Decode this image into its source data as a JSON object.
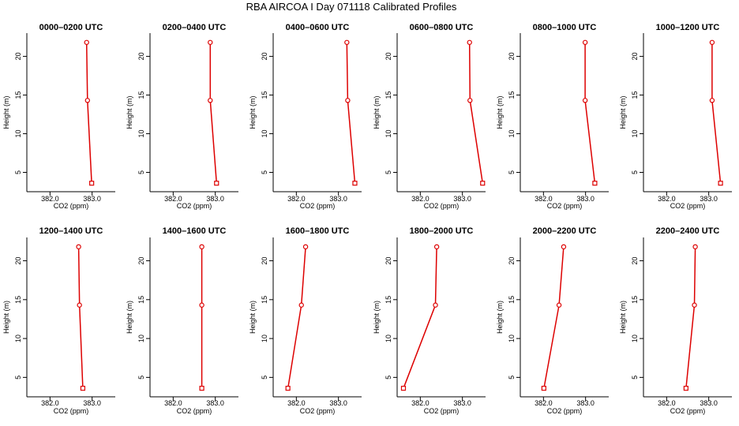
{
  "colors": {
    "line": "#dd0000",
    "axis": "#000000",
    "background": "#ffffff"
  },
  "chart_data": {
    "type": "line",
    "title": "RBA AIRCOA I  Day 071118  Calibrated Profiles",
    "xlabel": "CO2 (ppm)",
    "ylabel": "Height (m)",
    "xlim": [
      381.45,
      383.55
    ],
    "ylim": [
      2.5,
      23.0
    ],
    "xticks": [
      382.0,
      383.0
    ],
    "xtick_labels": [
      "382.0",
      "383.0"
    ],
    "yticks": [
      5,
      10,
      15,
      20
    ],
    "ytick_labels": [
      "5",
      "10",
      "15",
      "20"
    ],
    "heights": [
      3.6,
      14.3,
      21.8
    ],
    "panels": [
      {
        "title": "0000–0200 UTC",
        "co2": [
          382.99,
          382.89,
          382.87
        ]
      },
      {
        "title": "0200–0400 UTC",
        "co2": [
          383.03,
          382.88,
          382.88
        ]
      },
      {
        "title": "0400–0600 UTC",
        "co2": [
          383.39,
          383.22,
          383.2
        ]
      },
      {
        "title": "0600–0800 UTC",
        "co2": [
          383.48,
          383.18,
          383.17
        ]
      },
      {
        "title": "0800–1000 UTC",
        "co2": [
          383.22,
          382.99,
          382.99
        ]
      },
      {
        "title": "1000–1200 UTC",
        "co2": [
          383.28,
          383.08,
          383.08
        ]
      },
      {
        "title": "1200–1400 UTC",
        "co2": [
          382.78,
          382.7,
          382.68
        ]
      },
      {
        "title": "1400–1600 UTC",
        "co2": [
          382.68,
          382.68,
          382.68
        ]
      },
      {
        "title": "1600–1800 UTC",
        "co2": [
          381.8,
          382.12,
          382.22
        ]
      },
      {
        "title": "1800–2000 UTC",
        "co2": [
          381.6,
          382.36,
          382.39
        ]
      },
      {
        "title": "2000–2200 UTC",
        "co2": [
          382.01,
          382.37,
          382.48
        ]
      },
      {
        "title": "2200–2400 UTC",
        "co2": [
          382.46,
          382.66,
          382.68
        ]
      }
    ]
  }
}
